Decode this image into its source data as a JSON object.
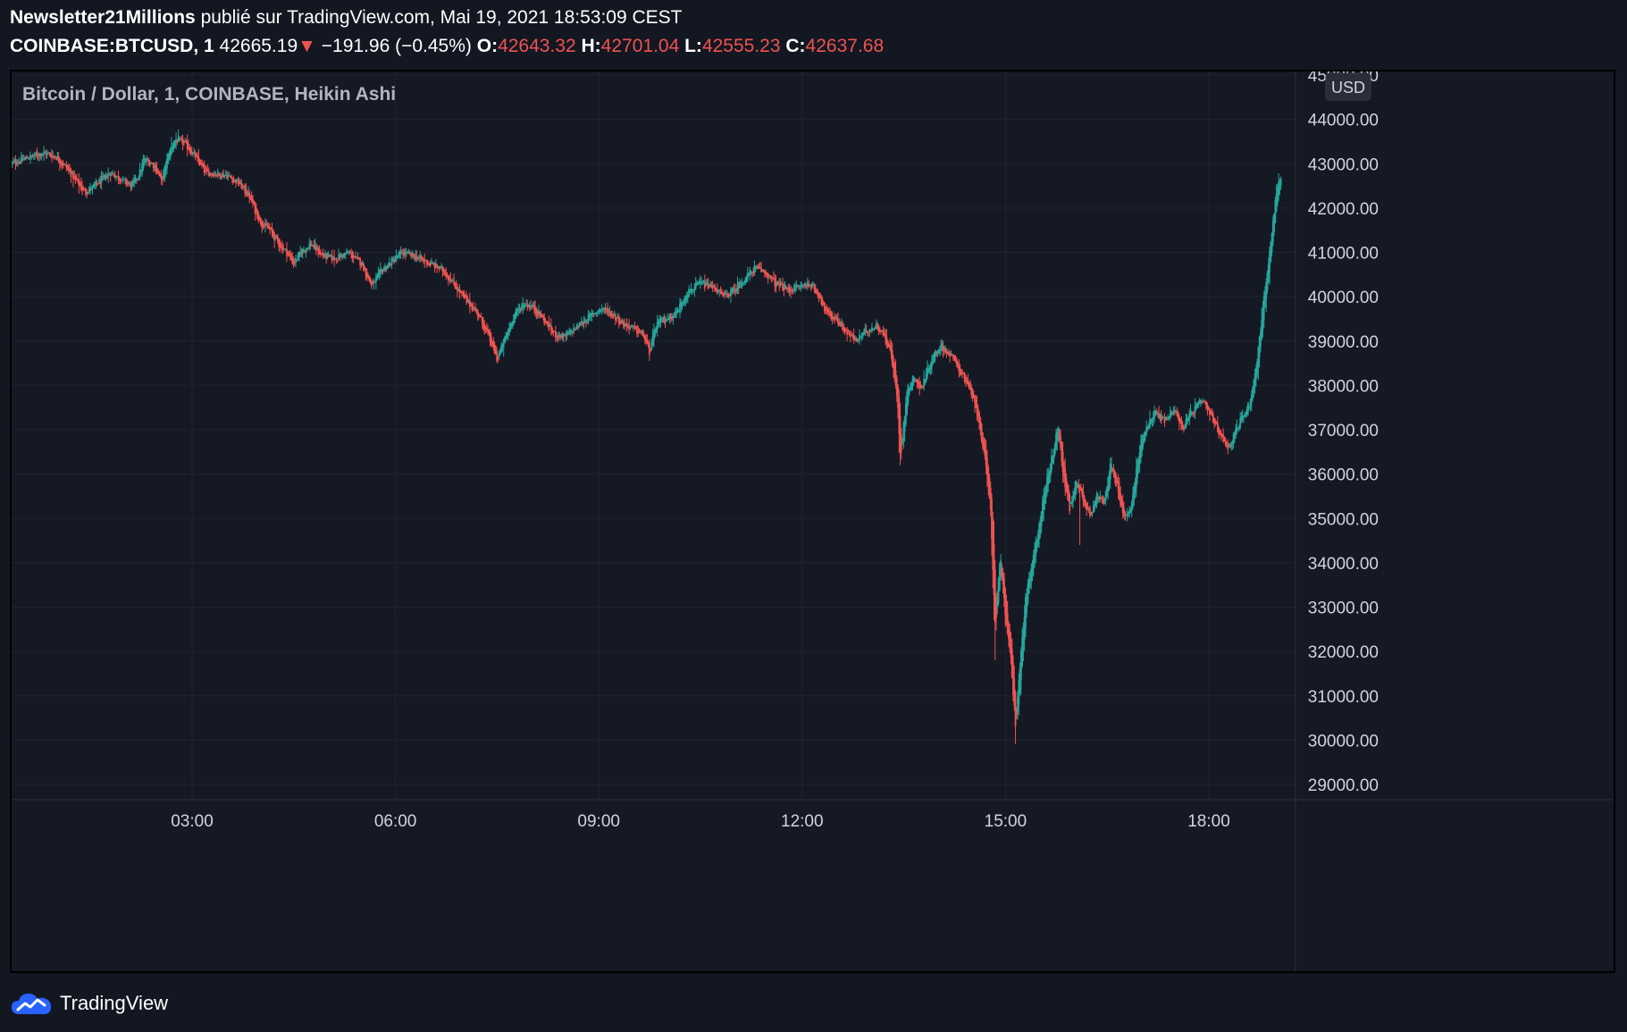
{
  "header": {
    "author": "Newsletter21Millions",
    "published_text": "publié sur TradingView.com, Mai 19, 2021 18:53:09 CEST",
    "symbol_interval": "COINBASE:BTCUSD, 1",
    "last_price": "42665.19",
    "change_arrow": "▼",
    "change": "−191.96 (−0.45%)",
    "open_label": "O:",
    "open": "42643.32",
    "high_label": "H:",
    "high": "42701.04",
    "low_label": "L:",
    "low": "42555.23",
    "close_label": "C:",
    "close": "42637.68"
  },
  "colors": {
    "background": "#131722",
    "pane": "#151924",
    "grid": "#1f2431",
    "up": "#26a69a",
    "down": "#ef5350",
    "axis_text": "#d1d4dc",
    "logo": "#2962ff"
  },
  "footer": {
    "brand": "TradingView",
    "logo_icon": "tradingview-cloud-logo-icon"
  },
  "chart_data": {
    "type": "candlestick",
    "chart_style": "Heikin Ashi",
    "legend_text": "Bitcoin / Dollar, 1, COINBASE, Heikin Ashi",
    "currency_badge": "USD",
    "y_axis": {
      "ylim": [
        28650,
        45000
      ],
      "ticks": [
        "45000.00",
        "44000.00",
        "43000.00",
        "42000.00",
        "41000.00",
        "40000.00",
        "39000.00",
        "38000.00",
        "37000.00",
        "36000.00",
        "35000.00",
        "34000.00",
        "33000.00",
        "32000.00",
        "31000.00",
        "30000.00",
        "29000.00"
      ],
      "tick_values": [
        45000,
        44000,
        43000,
        42000,
        41000,
        40000,
        39000,
        38000,
        37000,
        36000,
        35000,
        34000,
        33000,
        32000,
        31000,
        30000,
        29000
      ]
    },
    "x_axis": {
      "xlim_hours": [
        0.33,
        19.33
      ],
      "ticks": [
        "03:00",
        "06:00",
        "09:00",
        "12:00",
        "15:00",
        "18:00"
      ],
      "tick_hours": [
        3,
        6,
        9,
        12,
        15,
        18
      ]
    },
    "grid": true,
    "price_path": {
      "description_units": "hour, price (USD)",
      "points": [
        [
          0.33,
          43000
        ],
        [
          0.6,
          43150
        ],
        [
          0.8,
          43250
        ],
        [
          1.0,
          43150
        ],
        [
          1.15,
          42900
        ],
        [
          1.3,
          42600
        ],
        [
          1.42,
          42350
        ],
        [
          1.6,
          42550
        ],
        [
          1.8,
          42800
        ],
        [
          1.95,
          42650
        ],
        [
          2.1,
          42500
        ],
        [
          2.2,
          42700
        ],
        [
          2.3,
          43100
        ],
        [
          2.45,
          42950
        ],
        [
          2.55,
          42600
        ],
        [
          2.65,
          43200
        ],
        [
          2.75,
          43550
        ],
        [
          2.9,
          43450
        ],
        [
          3.05,
          43150
        ],
        [
          3.2,
          42800
        ],
        [
          3.5,
          42750
        ],
        [
          3.7,
          42550
        ],
        [
          3.85,
          42250
        ],
        [
          4.0,
          41700
        ],
        [
          4.15,
          41500
        ],
        [
          4.3,
          41150
        ],
        [
          4.4,
          41000
        ],
        [
          4.5,
          40750
        ],
        [
          4.6,
          41000
        ],
        [
          4.75,
          41200
        ],
        [
          4.9,
          40950
        ],
        [
          5.1,
          40850
        ],
        [
          5.3,
          41000
        ],
        [
          5.5,
          40750
        ],
        [
          5.65,
          40250
        ],
        [
          5.8,
          40600
        ],
        [
          5.95,
          40800
        ],
        [
          6.1,
          41000
        ],
        [
          6.3,
          40900
        ],
        [
          6.5,
          40750
        ],
        [
          6.7,
          40600
        ],
        [
          6.85,
          40300
        ],
        [
          7.0,
          40000
        ],
        [
          7.2,
          39650
        ],
        [
          7.35,
          39200
        ],
        [
          7.5,
          38600
        ],
        [
          7.6,
          39000
        ],
        [
          7.75,
          39600
        ],
        [
          7.9,
          39850
        ],
        [
          8.05,
          39750
        ],
        [
          8.2,
          39450
        ],
        [
          8.35,
          39150
        ],
        [
          8.5,
          39100
        ],
        [
          8.7,
          39350
        ],
        [
          8.9,
          39600
        ],
        [
          9.05,
          39750
        ],
        [
          9.2,
          39600
        ],
        [
          9.35,
          39400
        ],
        [
          9.5,
          39300
        ],
        [
          9.65,
          39150
        ],
        [
          9.75,
          38750
        ],
        [
          9.85,
          39400
        ],
        [
          10.0,
          39500
        ],
        [
          10.15,
          39650
        ],
        [
          10.3,
          40100
        ],
        [
          10.5,
          40300
        ],
        [
          10.7,
          40200
        ],
        [
          10.85,
          40000
        ],
        [
          11.0,
          40150
        ],
        [
          11.15,
          40400
        ],
        [
          11.3,
          40650
        ],
        [
          11.45,
          40550
        ],
        [
          11.6,
          40300
        ],
        [
          11.8,
          40150
        ],
        [
          12.0,
          40250
        ],
        [
          12.1,
          40300
        ],
        [
          12.25,
          40050
        ],
        [
          12.35,
          39650
        ],
        [
          12.5,
          39500
        ],
        [
          12.65,
          39200
        ],
        [
          12.8,
          39000
        ],
        [
          12.95,
          39250
        ],
        [
          13.1,
          39350
        ],
        [
          13.2,
          39150
        ],
        [
          13.3,
          38800
        ],
        [
          13.4,
          37800
        ],
        [
          13.45,
          36400
        ],
        [
          13.55,
          37900
        ],
        [
          13.65,
          38200
        ],
        [
          13.75,
          37900
        ],
        [
          13.85,
          38350
        ],
        [
          13.95,
          38700
        ],
        [
          14.05,
          38900
        ],
        [
          14.2,
          38650
        ],
        [
          14.35,
          38300
        ],
        [
          14.5,
          37800
        ],
        [
          14.6,
          37300
        ],
        [
          14.7,
          36300
        ],
        [
          14.78,
          35200
        ],
        [
          14.85,
          32500
        ],
        [
          14.92,
          34200
        ],
        [
          15.0,
          32800
        ],
        [
          15.08,
          31800
        ],
        [
          15.15,
          30300
        ],
        [
          15.22,
          31800
        ],
        [
          15.3,
          33200
        ],
        [
          15.4,
          34000
        ],
        [
          15.5,
          34900
        ],
        [
          15.6,
          35800
        ],
        [
          15.7,
          36500
        ],
        [
          15.78,
          37100
        ],
        [
          15.85,
          36000
        ],
        [
          15.95,
          35200
        ],
        [
          16.05,
          35900
        ],
        [
          16.15,
          35400
        ],
        [
          16.25,
          35100
        ],
        [
          16.35,
          35500
        ],
        [
          16.45,
          35400
        ],
        [
          16.55,
          36200
        ],
        [
          16.65,
          35700
        ],
        [
          16.75,
          35000
        ],
        [
          16.85,
          35200
        ],
        [
          16.95,
          36300
        ],
        [
          17.05,
          37000
        ],
        [
          17.2,
          37400
        ],
        [
          17.35,
          37200
        ],
        [
          17.5,
          37500
        ],
        [
          17.6,
          37000
        ],
        [
          17.75,
          37400
        ],
        [
          17.9,
          37650
        ],
        [
          18.0,
          37400
        ],
        [
          18.1,
          37100
        ],
        [
          18.2,
          36800
        ],
        [
          18.3,
          36600
        ],
        [
          18.4,
          37000
        ],
        [
          18.5,
          37300
        ],
        [
          18.6,
          37600
        ],
        [
          18.7,
          38400
        ],
        [
          18.8,
          39800
        ],
        [
          18.9,
          41000
        ],
        [
          18.97,
          42000
        ],
        [
          19.03,
          42600
        ],
        [
          19.07,
          42650
        ]
      ]
    },
    "wick_extremes": [
      [
        13.45,
        36200
      ],
      [
        14.85,
        31800
      ],
      [
        15.15,
        30000
      ],
      [
        16.1,
        34400
      ],
      [
        15.3,
        32600
      ],
      [
        2.7,
        43600
      ],
      [
        7.5,
        38500
      ],
      [
        9.75,
        38550
      ]
    ]
  }
}
